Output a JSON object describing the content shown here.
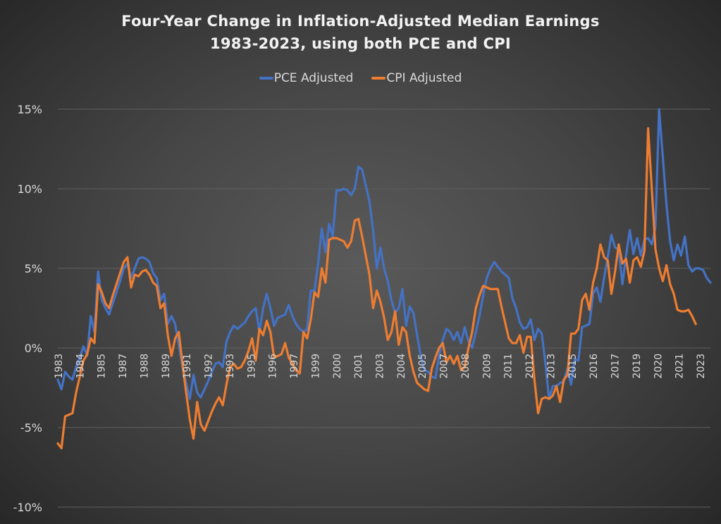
{
  "chart_data": {
    "type": "line",
    "title": "Four-Year Change in Inflation-Adjusted Median Earnings",
    "subtitle": "1983-2023, using both PCE and CPI",
    "xlabel": "",
    "ylabel": "",
    "ylim": [
      -10,
      15
    ],
    "yticks": [
      15,
      10,
      5,
      0,
      -5,
      -10
    ],
    "ytick_labels": [
      "15%",
      "10%",
      "5%",
      "0%",
      "-5%",
      "-10%"
    ],
    "grid": true,
    "legend_position": "top-center",
    "x_frequency": "quarterly",
    "x_start": "1983",
    "xtick_labels": [
      "1983",
      "1984",
      "1985",
      "1987",
      "1988",
      "1989",
      "1991",
      "1992",
      "1993",
      "1995",
      "1996",
      "1997",
      "1999",
      "2000",
      "2001",
      "2003",
      "2004",
      "2005",
      "2007",
      "2008",
      "2009",
      "2011",
      "2012",
      "2013",
      "2015",
      "2016",
      "2017",
      "2019",
      "2020",
      "2021",
      "2023"
    ],
    "series": [
      {
        "name": "PCE Adjusted",
        "color": "#4472c4",
        "values": [
          -2.0,
          -2.6,
          -1.5,
          -1.8,
          -2.0,
          -1.2,
          -0.6,
          0.1,
          -0.5,
          2.0,
          1.0,
          4.8,
          3.0,
          2.5,
          2.1,
          2.8,
          3.5,
          4.2,
          5.0,
          5.3,
          4.4,
          5.0,
          5.6,
          5.7,
          5.6,
          5.4,
          4.7,
          4.4,
          3.0,
          3.4,
          1.5,
          2.0,
          1.5,
          0.2,
          -1.2,
          -2.2,
          -3.2,
          -1.7,
          -2.8,
          -3.1,
          -2.6,
          -2.1,
          -1.5,
          -1.0,
          -0.9,
          -1.2,
          0.4,
          1.0,
          1.4,
          1.2,
          1.4,
          1.6,
          2.0,
          2.3,
          2.5,
          1.0,
          2.5,
          3.4,
          2.5,
          1.4,
          1.9,
          2.0,
          2.1,
          2.7,
          2.0,
          1.5,
          1.2,
          1.0,
          1.2,
          3.6,
          3.6,
          5.3,
          7.5,
          6.0,
          7.8,
          7.0,
          9.9,
          9.9,
          10.0,
          9.9,
          9.6,
          10.0,
          11.4,
          11.2,
          10.2,
          9.2,
          7.4,
          5.0,
          6.3,
          5.0,
          4.2,
          3.0,
          2.2,
          2.5,
          3.7,
          1.4,
          2.6,
          2.2,
          0.8,
          -0.5,
          -1.4,
          -1.5,
          -1.8,
          -1.9,
          -0.5,
          0.5,
          1.2,
          1.0,
          0.5,
          1.0,
          0.3,
          1.3,
          0.4,
          0.0,
          1.0,
          2.0,
          3.3,
          4.4,
          5.0,
          5.4,
          5.1,
          4.8,
          4.6,
          4.4,
          3.1,
          2.5,
          1.6,
          1.2,
          1.3,
          1.8,
          0.5,
          1.2,
          0.9,
          -1.0,
          -3.2,
          -2.4,
          -2.4,
          -2.2,
          -2.1,
          -1.3,
          -2.3,
          -0.7,
          -0.8,
          1.3,
          1.4,
          1.5,
          3.4,
          3.8,
          2.9,
          4.4,
          5.7,
          7.1,
          6.3,
          6.2,
          4.0,
          5.8,
          7.4,
          5.9,
          6.9,
          5.8,
          6.8,
          6.9,
          6.5,
          7.6,
          15.0,
          12.0,
          9.0,
          6.7,
          5.5,
          6.5,
          5.8,
          7.0,
          5.2,
          4.8,
          5.0,
          5.0,
          4.9,
          4.4,
          4.1
        ],
        "note": "values traced from line positions; quarterly, approximate"
      },
      {
        "name": "CPI Adjusted",
        "color": "#ed7d31",
        "values": [
          -6.0,
          -6.3,
          -4.3,
          -4.2,
          -4.1,
          -2.8,
          -1.8,
          -0.8,
          -0.4,
          0.6,
          0.3,
          4.0,
          3.5,
          2.8,
          2.5,
          3.3,
          4.0,
          4.7,
          5.4,
          5.7,
          3.8,
          4.6,
          4.5,
          4.8,
          4.9,
          4.6,
          4.1,
          3.9,
          2.5,
          2.8,
          0.8,
          -0.5,
          0.6,
          1.0,
          -1.0,
          -2.8,
          -4.5,
          -5.7,
          -3.4,
          -4.8,
          -5.2,
          -4.6,
          -4.0,
          -3.5,
          -3.1,
          -3.6,
          -2.3,
          -1.2,
          -1.0,
          -1.3,
          -1.2,
          -0.8,
          -0.2,
          0.6,
          -0.8,
          1.2,
          0.8,
          1.7,
          1.0,
          -0.6,
          -0.5,
          -0.4,
          0.3,
          -0.6,
          -1.0,
          -1.4,
          -1.6,
          1.0,
          0.6,
          1.8,
          3.5,
          3.2,
          5.0,
          4.1,
          6.8,
          6.9,
          6.9,
          6.8,
          6.7,
          6.3,
          6.7,
          8.0,
          8.1,
          7.0,
          5.8,
          4.6,
          2.5,
          3.6,
          2.9,
          1.9,
          0.5,
          1.0,
          2.3,
          0.2,
          1.3,
          1.0,
          -0.5,
          -1.5,
          -2.2,
          -2.4,
          -2.6,
          -2.7,
          -1.3,
          -0.6,
          0.0,
          0.3,
          -0.9,
          -0.5,
          -1.0,
          -0.5,
          -1.4,
          -1.2,
          0.0,
          1.0,
          2.5,
          3.3,
          3.9,
          3.8,
          3.7,
          3.7,
          3.7,
          2.6,
          1.6,
          0.6,
          0.3,
          0.3,
          0.8,
          -0.3,
          0.7,
          0.7,
          -2.0,
          -4.1,
          -3.2,
          -3.1,
          -3.2,
          -3.0,
          -2.4,
          -3.4,
          -2.0,
          -1.7,
          0.9,
          0.9,
          1.2,
          3.0,
          3.4,
          2.4,
          4.1,
          5.0,
          6.5,
          5.7,
          5.5,
          3.4,
          4.8,
          6.5,
          5.3,
          5.6,
          4.1,
          5.5,
          5.7,
          5.1,
          6.1,
          13.8,
          10.0,
          6.2,
          5.0,
          4.2,
          5.2,
          4.0,
          3.4,
          2.4,
          2.3,
          2.3,
          2.4,
          2.0,
          1.5
        ],
        "note": "values traced from line positions; quarterly, approximate"
      }
    ]
  },
  "legend": {
    "items": [
      {
        "label": "PCE Adjusted",
        "color": "#4472c4"
      },
      {
        "label": "CPI Adjusted",
        "color": "#ed7d31"
      }
    ]
  }
}
